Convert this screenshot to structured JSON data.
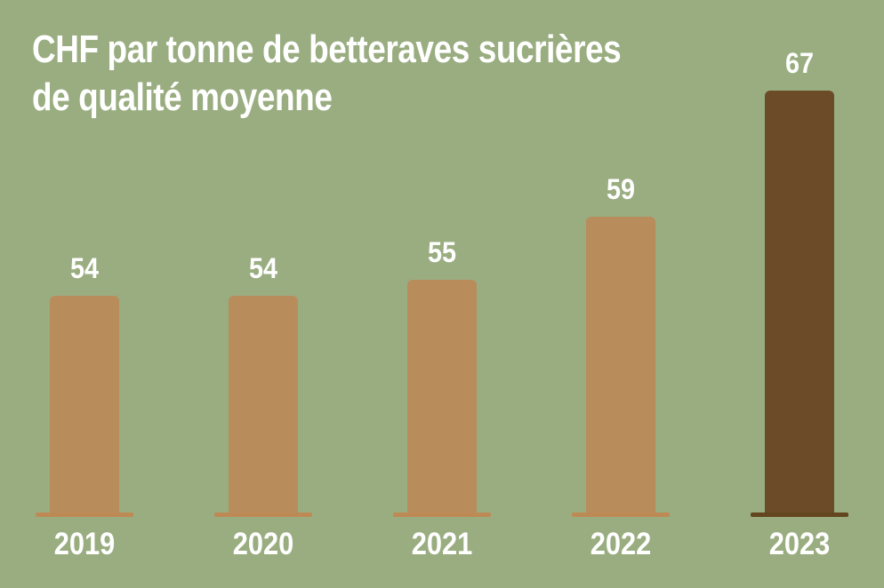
{
  "title": {
    "line1": "CHF par tonne de betteraves sucrières",
    "line2": "de qualité moyenne"
  },
  "chart_data": {
    "type": "bar",
    "title": "CHF par tonne de betteraves sucrières de qualité moyenne",
    "categories": [
      "2019",
      "2020",
      "2021",
      "2022",
      "2023"
    ],
    "values": [
      54,
      54,
      55,
      59,
      67
    ],
    "xlabel": "",
    "ylabel": "",
    "ylim": [
      40,
      70
    ],
    "grid": false,
    "legend": false,
    "value_labels_shown": true,
    "highlight_index": 4,
    "colors": {
      "background": "#99AD80",
      "bar_default": "#B98C5C",
      "bar_highlight": "#6B4B28",
      "baseline_default": "#BD8A55",
      "baseline_highlight": "#63451F",
      "label_text": "#FFFFFF"
    }
  }
}
